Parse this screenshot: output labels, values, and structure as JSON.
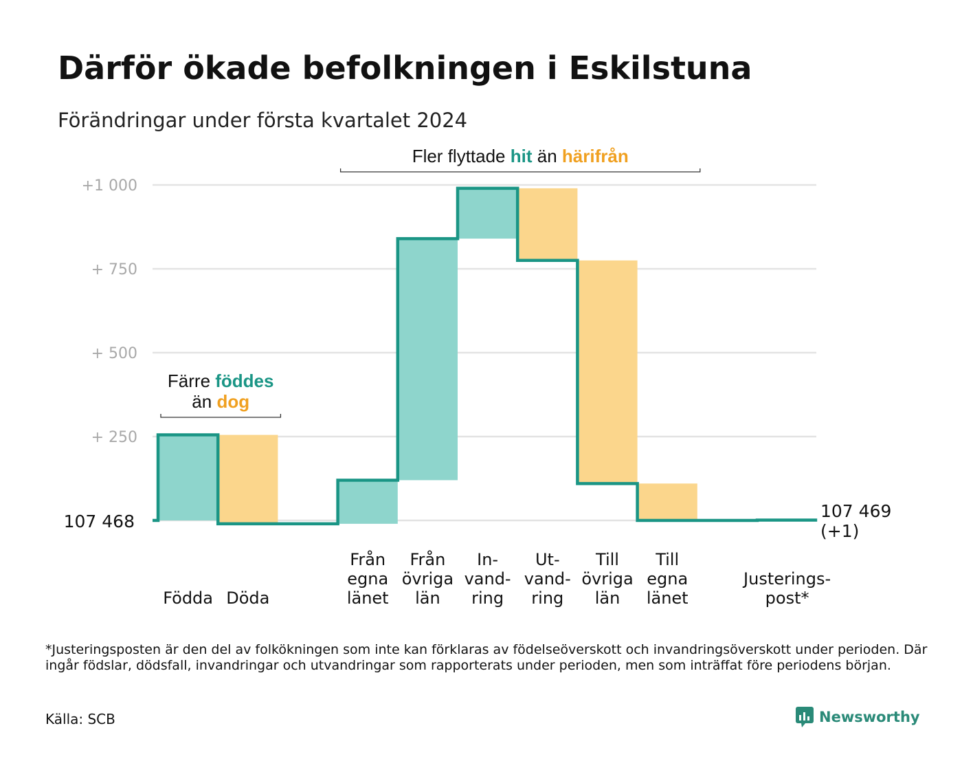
{
  "title": "Därför ökade befolkningen i Eskilstuna",
  "subtitle": "Förändringar under första kvartalet 2024",
  "colors": {
    "positive": "#8ed5cc",
    "negative": "#fbd68c",
    "line": "#1a9585",
    "grid": "#e3e3e3",
    "accent_teal": "#1a9585",
    "accent_orange": "#f0a020",
    "tick": "#a8a8a8",
    "brand": "#2a8a78"
  },
  "chart_data": {
    "type": "waterfall",
    "start": {
      "value": 107468,
      "label": "107   468"
    },
    "end": {
      "value": 107469,
      "label_line1": "107 469",
      "label_line2": "(+1)"
    },
    "y_ticks": [
      {
        "value": 0,
        "label": ""
      },
      {
        "value": 250,
        "label": "+   250"
      },
      {
        "value": 500,
        "label": "+   500"
      },
      {
        "value": 750,
        "label": "+   750"
      },
      {
        "value": 1000,
        "label": "+1   000"
      }
    ],
    "ylim": [
      0,
      1000
    ],
    "grid": true,
    "steps": [
      {
        "label_lines": [
          "Födda"
        ],
        "change": 255
      },
      {
        "label_lines": [
          "Döda"
        ],
        "change": -265
      },
      {
        "label_lines": [],
        "change": 0
      },
      {
        "label_lines": [
          "Från",
          "egna",
          "länet"
        ],
        "change": 130
      },
      {
        "label_lines": [
          "Från",
          "övriga",
          "län"
        ],
        "change": 720
      },
      {
        "label_lines": [
          "In-",
          "vand-",
          "ring"
        ],
        "change": 150
      },
      {
        "label_lines": [
          "Ut-",
          "vand-",
          "ring"
        ],
        "change": -215
      },
      {
        "label_lines": [
          "Till",
          "övriga",
          "län"
        ],
        "change": -665
      },
      {
        "label_lines": [
          "Till",
          "egna",
          "länet"
        ],
        "change": -110
      },
      {
        "label_lines": [],
        "change": 0
      },
      {
        "label_lines": [
          "Justerings-",
          "post*"
        ],
        "change": 1
      }
    ],
    "annotations": [
      {
        "lines": [
          [
            {
              "text": "Färre",
              "style": "plain"
            },
            {
              "text": "föddes",
              "style": "teal"
            }
          ],
          [
            {
              "text": "än",
              "style": "plain"
            },
            {
              "text": "dog",
              "style": "orange"
            }
          ]
        ],
        "span": [
          0,
          1
        ]
      },
      {
        "lines": [
          [
            {
              "text": "Fler flyttade",
              "style": "plain"
            },
            {
              "text": "hit",
              "style": "teal"
            },
            {
              "text": "än",
              "style": "plain"
            },
            {
              "text": "härifrån",
              "style": "orange"
            }
          ]
        ],
        "span": [
          3,
          8
        ]
      }
    ]
  },
  "footnote": "*Justeringsposten är den del av folkökningen som inte kan förklaras av födelseöverskott och invandringsöverskott under perioden. Där ingår födslar, dödsfall, invandringar och utvandringar som rapporterats under perioden, men som inträffat före periodens början.",
  "source": "Källa: SCB",
  "brand": {
    "name": "Newsworthy",
    "icon": "newsworthy-logo-icon"
  }
}
